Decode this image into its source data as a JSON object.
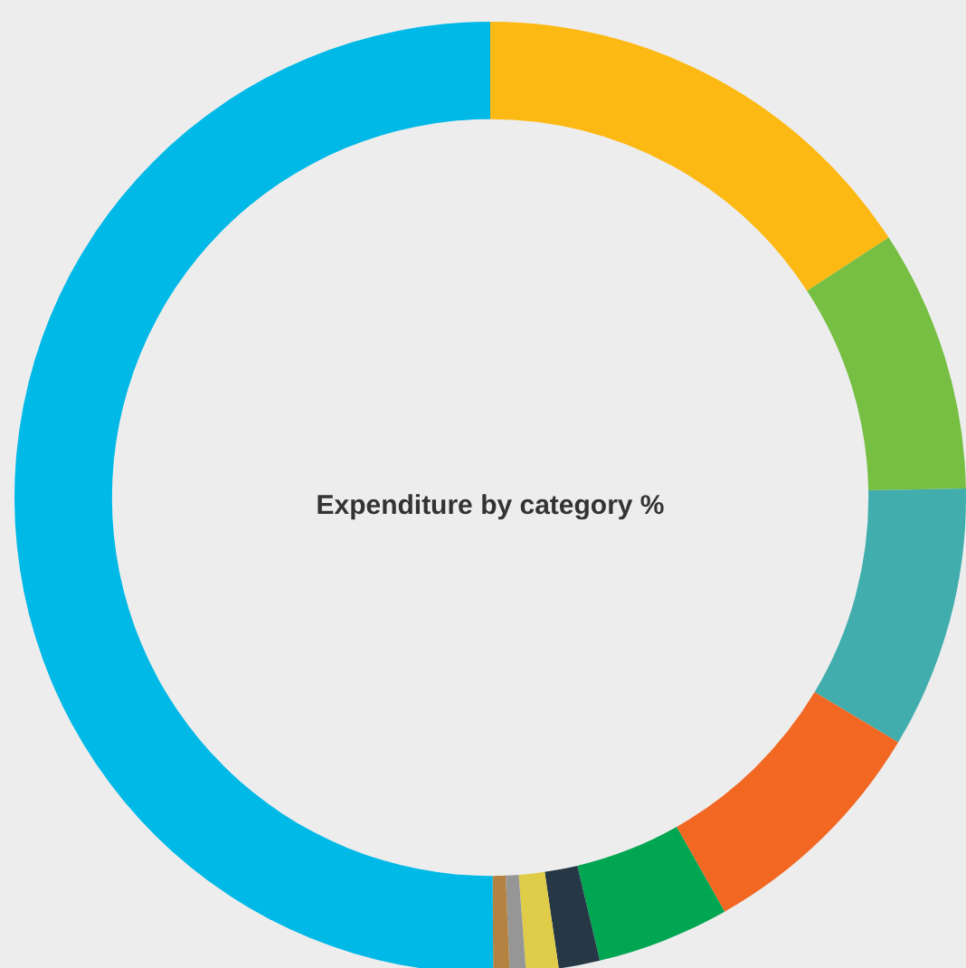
{
  "chart_data": {
    "type": "donut",
    "title": "Expenditure by category %",
    "categories": [
      null,
      null,
      null,
      null,
      null,
      null,
      null,
      null,
      null,
      null
    ],
    "values": [
      15.8,
      8.9,
      8.9,
      8.2,
      4.5,
      1.4,
      1.1,
      0.55,
      0.55,
      50.1
    ],
    "colors": [
      "#fdb913",
      "#76bf43",
      "#41adad",
      "#f26722",
      "#00a651",
      "#263845",
      "#dfcd49",
      "#969696",
      "#b48241",
      "#00b9e7"
    ],
    "legend": false
  }
}
